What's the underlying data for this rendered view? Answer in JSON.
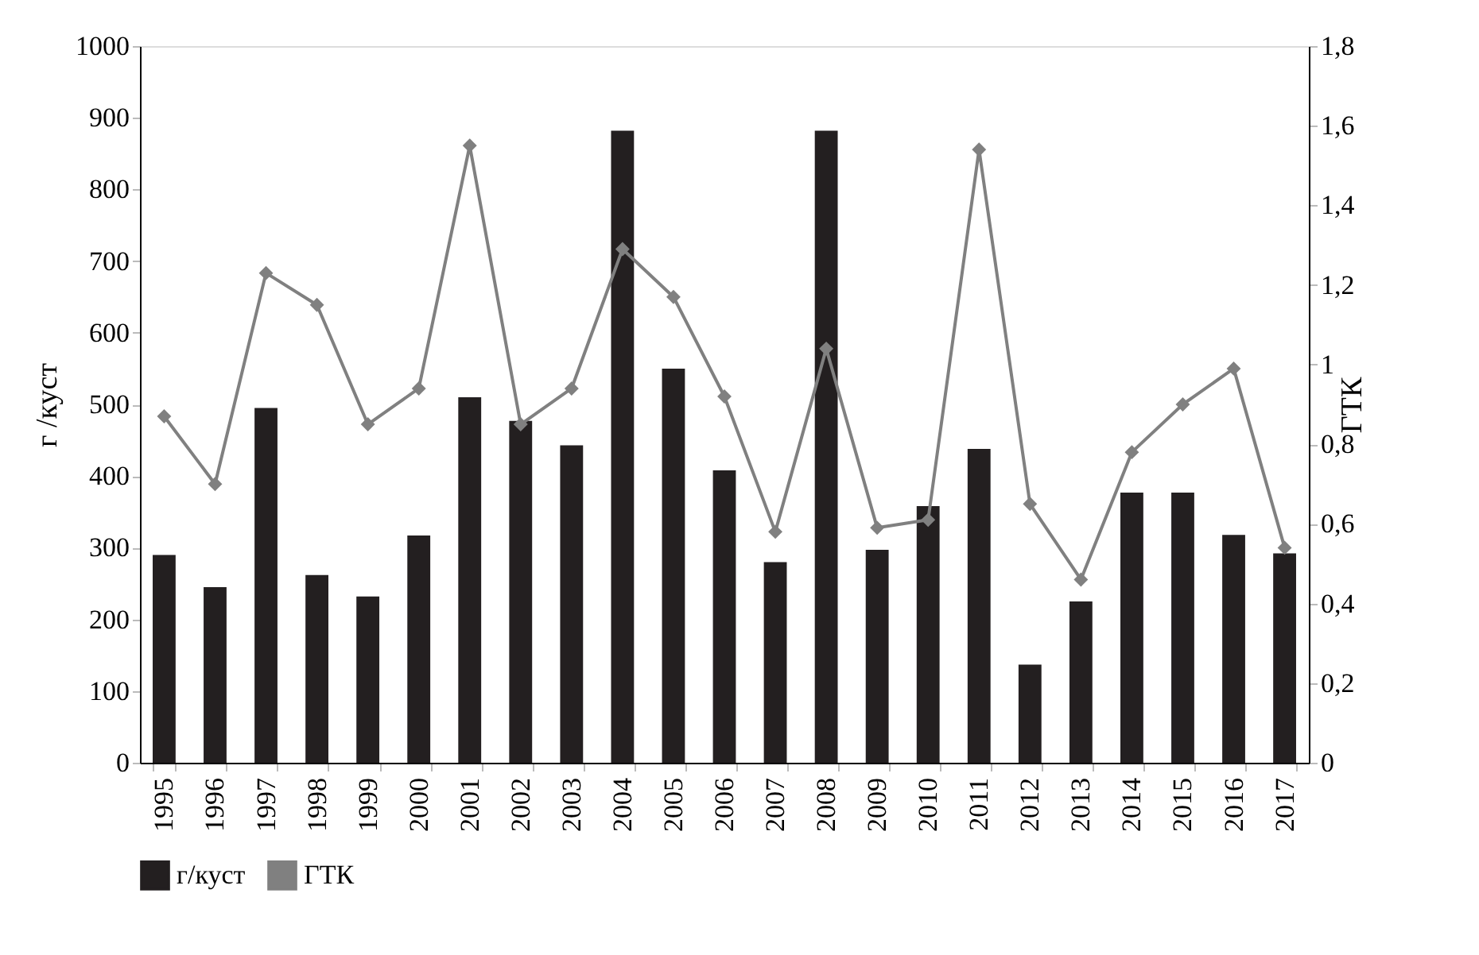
{
  "chart_data": {
    "type": "bar",
    "categories": [
      "1995",
      "1996",
      "1997",
      "1998",
      "1999",
      "2000",
      "2001",
      "2002",
      "2003",
      "2004",
      "2005",
      "2006",
      "2007",
      "2008",
      "2009",
      "2010",
      "2011",
      "2012",
      "2013",
      "2014",
      "2015",
      "2016",
      "2017"
    ],
    "series": [
      {
        "name": "г/куст",
        "color": "#231f20",
        "values": [
          290,
          245,
          495,
          262,
          232,
          317,
          510,
          477,
          443,
          882,
          550,
          408,
          280,
          882,
          297,
          358,
          438,
          137,
          225,
          377,
          377,
          318,
          292
        ]
      },
      {
        "name": "ГТК",
        "type": "line",
        "axis": "y2",
        "color": "#808080",
        "marker": "diamond",
        "values": [
          0.87,
          0.7,
          1.23,
          1.15,
          0.85,
          0.94,
          1.55,
          0.85,
          0.94,
          1.29,
          1.17,
          0.92,
          0.58,
          1.04,
          0.59,
          0.61,
          1.54,
          0.65,
          0.46,
          0.78,
          0.9,
          0.99,
          0.54
        ]
      }
    ],
    "ylabel": "г /куст",
    "y2label": "ГТК",
    "ylim": [
      0,
      1000
    ],
    "yticks": [
      0,
      100,
      200,
      300,
      400,
      500,
      600,
      700,
      800,
      900,
      1000
    ],
    "y2lim": [
      0,
      1.8
    ],
    "y2ticks": [
      0,
      {
        "value": 0.2,
        "label": "0,2"
      },
      {
        "value": 0.4,
        "label": "0,4"
      },
      {
        "value": 0.6,
        "label": "0,6"
      },
      {
        "value": 0.8,
        "label": "0,8"
      },
      1,
      {
        "value": 1.2,
        "label": "1,2"
      },
      {
        "value": 1.4,
        "label": "1,4"
      },
      {
        "value": 1.6,
        "label": "1,6"
      },
      {
        "value": 1.8,
        "label": "1,8"
      }
    ],
    "legend": "bottom"
  }
}
